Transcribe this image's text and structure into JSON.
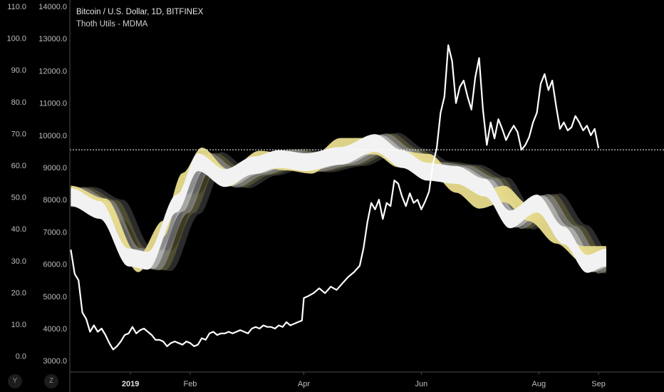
{
  "legend": {
    "title": "Bitcoin / U.S. Dollar, 1D, BITFINEX",
    "indicator": "Thoth Utils - MDMA"
  },
  "buttons": {
    "y_label": "Y",
    "z_label": "Z"
  },
  "colors": {
    "background": "#000000",
    "price_line": "#ffffff",
    "band_white": "#f2f2f2",
    "band_yellow": "#e8dc8c",
    "band_gray": "#8c8c8c",
    "band_dark": "#3a3a3a",
    "band_olive": "#6e6a3a",
    "crosshair": "#ffffff"
  },
  "chart_data": {
    "type": "line",
    "title": "Bitcoin / U.S. Dollar, 1D, BITFINEX",
    "x_labels": [
      "2019",
      "Feb",
      "Apr",
      "Jun",
      "Aug",
      "Sep"
    ],
    "x_label_days": [
      31,
      62,
      121,
      182,
      243,
      274
    ],
    "x_range_days": [
      -0.5,
      308
    ],
    "price_axis": {
      "ticks": [
        "3000.0",
        "4000.0",
        "5000.0",
        "6000.0",
        "7000.0",
        "8000.0",
        "9000.0",
        "10000.0",
        "11000.0",
        "12000.0",
        "13000.0",
        "14000.0"
      ],
      "range": [
        2650,
        14200
      ]
    },
    "oscillator_axis": {
      "ticks": [
        "0.0",
        "10.0",
        "20.0",
        "30.0",
        "40.0",
        "50.0",
        "60.0",
        "70.0",
        "80.0",
        "90.0",
        "100.0",
        "110.0"
      ],
      "range": [
        -5,
        112
      ]
    },
    "horizontal_line_price": 9550,
    "series": [
      {
        "name": "BTCUSD close",
        "axis": "price",
        "points": [
          [
            0,
            6450
          ],
          [
            2,
            5700
          ],
          [
            4,
            5500
          ],
          [
            6,
            4500
          ],
          [
            8,
            4300
          ],
          [
            10,
            3900
          ],
          [
            12,
            4100
          ],
          [
            14,
            3900
          ],
          [
            16,
            4000
          ],
          [
            18,
            3800
          ],
          [
            20,
            3550
          ],
          [
            22,
            3350
          ],
          [
            24,
            3450
          ],
          [
            26,
            3600
          ],
          [
            28,
            3800
          ],
          [
            30,
            3850
          ],
          [
            32,
            4050
          ],
          [
            34,
            3850
          ],
          [
            36,
            3950
          ],
          [
            38,
            4000
          ],
          [
            40,
            3900
          ],
          [
            42,
            3800
          ],
          [
            44,
            3650
          ],
          [
            46,
            3650
          ],
          [
            48,
            3600
          ],
          [
            50,
            3450
          ],
          [
            52,
            3550
          ],
          [
            54,
            3600
          ],
          [
            56,
            3550
          ],
          [
            58,
            3500
          ],
          [
            60,
            3600
          ],
          [
            62,
            3550
          ],
          [
            64,
            3450
          ],
          [
            66,
            3500
          ],
          [
            68,
            3700
          ],
          [
            70,
            3650
          ],
          [
            72,
            3850
          ],
          [
            74,
            3900
          ],
          [
            76,
            3800
          ],
          [
            78,
            3850
          ],
          [
            80,
            3850
          ],
          [
            82,
            3900
          ],
          [
            84,
            3850
          ],
          [
            86,
            3900
          ],
          [
            88,
            3950
          ],
          [
            90,
            3900
          ],
          [
            92,
            3850
          ],
          [
            94,
            4000
          ],
          [
            96,
            4050
          ],
          [
            98,
            4000
          ],
          [
            100,
            4100
          ],
          [
            102,
            4050
          ],
          [
            104,
            4050
          ],
          [
            106,
            4000
          ],
          [
            108,
            4100
          ],
          [
            110,
            4050
          ],
          [
            112,
            4200
          ],
          [
            114,
            4100
          ],
          [
            116,
            4150
          ],
          [
            118,
            4200
          ],
          [
            120,
            4250
          ],
          [
            121,
            4950
          ],
          [
            123,
            5000
          ],
          [
            126,
            5100
          ],
          [
            129,
            5250
          ],
          [
            132,
            5100
          ],
          [
            135,
            5300
          ],
          [
            138,
            5200
          ],
          [
            141,
            5400
          ],
          [
            144,
            5600
          ],
          [
            147,
            5750
          ],
          [
            150,
            5950
          ],
          [
            152,
            6500
          ],
          [
            154,
            7300
          ],
          [
            156,
            7900
          ],
          [
            158,
            7700
          ],
          [
            160,
            8000
          ],
          [
            162,
            7400
          ],
          [
            164,
            7900
          ],
          [
            166,
            7800
          ],
          [
            168,
            8600
          ],
          [
            170,
            8500
          ],
          [
            172,
            8100
          ],
          [
            174,
            7800
          ],
          [
            176,
            8200
          ],
          [
            178,
            7900
          ],
          [
            180,
            8000
          ],
          [
            182,
            7700
          ],
          [
            184,
            7950
          ],
          [
            186,
            8250
          ],
          [
            188,
            9100
          ],
          [
            190,
            9600
          ],
          [
            192,
            10700
          ],
          [
            194,
            11200
          ],
          [
            196,
            12800
          ],
          [
            198,
            12300
          ],
          [
            200,
            11000
          ],
          [
            202,
            11500
          ],
          [
            204,
            11700
          ],
          [
            206,
            11200
          ],
          [
            208,
            10800
          ],
          [
            210,
            11800
          ],
          [
            212,
            12400
          ],
          [
            214,
            10800
          ],
          [
            216,
            9700
          ],
          [
            218,
            10400
          ],
          [
            220,
            9900
          ],
          [
            222,
            10500
          ],
          [
            224,
            10200
          ],
          [
            226,
            9850
          ],
          [
            228,
            10100
          ],
          [
            230,
            10300
          ],
          [
            232,
            10100
          ],
          [
            234,
            9550
          ],
          [
            236,
            9700
          ],
          [
            238,
            9950
          ],
          [
            240,
            10400
          ],
          [
            242,
            10700
          ],
          [
            244,
            11600
          ],
          [
            246,
            11900
          ],
          [
            248,
            11400
          ],
          [
            250,
            11700
          ],
          [
            252,
            10900
          ],
          [
            254,
            10200
          ],
          [
            256,
            10400
          ],
          [
            258,
            10150
          ],
          [
            260,
            10250
          ],
          [
            262,
            10600
          ],
          [
            264,
            10400
          ],
          [
            266,
            10150
          ],
          [
            268,
            10300
          ],
          [
            270,
            10000
          ],
          [
            272,
            10200
          ],
          [
            274,
            9600
          ]
        ]
      },
      {
        "name": "MDMA white band",
        "axis": "oscillator",
        "points": [
          [
            0,
            50
          ],
          [
            15,
            46
          ],
          [
            30,
            31
          ],
          [
            40,
            30
          ],
          [
            55,
            48
          ],
          [
            66,
            61
          ],
          [
            80,
            56
          ],
          [
            95,
            60
          ],
          [
            108,
            62
          ],
          [
            122,
            61
          ],
          [
            140,
            63
          ],
          [
            158,
            67
          ],
          [
            172,
            62
          ],
          [
            185,
            58
          ],
          [
            200,
            57
          ],
          [
            215,
            53
          ],
          [
            228,
            43
          ],
          [
            242,
            48
          ],
          [
            256,
            38
          ],
          [
            268,
            29
          ],
          [
            278,
            31
          ]
        ]
      },
      {
        "name": "MDMA yellow band",
        "axis": "oscillator",
        "points": [
          [
            0,
            51
          ],
          [
            18,
            47
          ],
          [
            35,
            29
          ],
          [
            48,
            40
          ],
          [
            58,
            55
          ],
          [
            68,
            63
          ],
          [
            82,
            56
          ],
          [
            98,
            62
          ],
          [
            112,
            61
          ],
          [
            125,
            60
          ],
          [
            140,
            66
          ],
          [
            158,
            66
          ],
          [
            170,
            62
          ],
          [
            186,
            61
          ],
          [
            200,
            54
          ],
          [
            212,
            49
          ],
          [
            225,
            51
          ],
          [
            238,
            45
          ],
          [
            252,
            38
          ],
          [
            266,
            32
          ],
          [
            278,
            32
          ]
        ]
      }
    ]
  }
}
